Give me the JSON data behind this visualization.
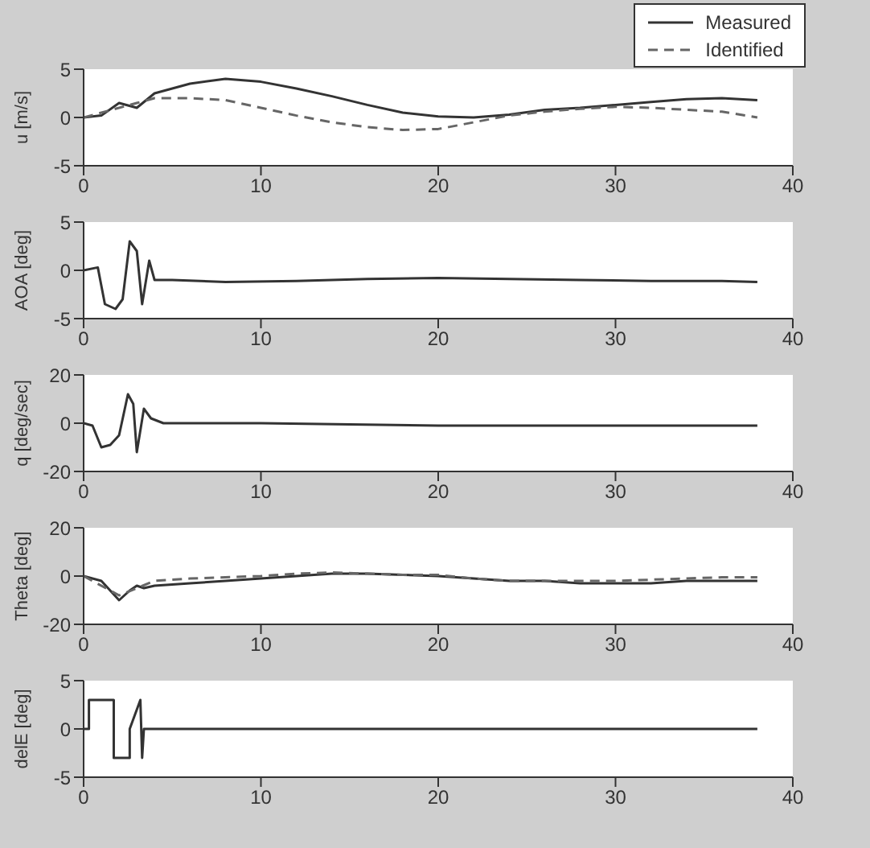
{
  "chart_data": [
    {
      "type": "line",
      "ylabel": "u [m/s]",
      "xlim": [
        0,
        40
      ],
      "xticks": [
        0,
        10,
        20,
        30,
        40
      ],
      "ylim": [
        -5,
        5
      ],
      "yticks": [
        -5,
        0,
        5
      ],
      "legend": "top right",
      "marker": "none",
      "series": [
        {
          "name": "Measured",
          "color": "#333333",
          "line_style": "solid",
          "x": [
            0,
            1,
            2,
            3,
            4,
            6,
            8,
            10,
            12,
            14,
            16,
            18,
            20,
            22,
            24,
            26,
            28,
            30,
            32,
            34,
            36,
            38
          ],
          "values": [
            0,
            0.2,
            1.5,
            1,
            2.5,
            3.5,
            4,
            3.7,
            3,
            2.2,
            1.3,
            0.5,
            0.1,
            0,
            0.3,
            0.8,
            1,
            1.3,
            1.6,
            1.9,
            2,
            1.8
          ]
        },
        {
          "name": "Identified",
          "color": "#666666",
          "line_style": "dashed",
          "x": [
            0,
            3,
            4,
            6,
            8,
            10,
            12,
            14,
            16,
            18,
            20,
            22,
            24,
            26,
            28,
            30,
            32,
            34,
            36,
            38
          ],
          "values": [
            0,
            1.5,
            2,
            2,
            1.8,
            1,
            0.2,
            -0.5,
            -1,
            -1.3,
            -1.2,
            -0.5,
            0.2,
            0.6,
            0.9,
            1.1,
            1,
            0.8,
            0.6,
            0
          ]
        }
      ]
    },
    {
      "type": "line",
      "ylabel": "AOA [deg]",
      "xlim": [
        0,
        40
      ],
      "xticks": [
        0,
        10,
        20,
        30,
        40
      ],
      "ylim": [
        -5,
        5
      ],
      "yticks": [
        -5,
        0,
        5
      ],
      "marker": "none",
      "series": [
        {
          "color": "#333333",
          "line_style": "solid",
          "x": [
            0,
            0.8,
            1.2,
            1.8,
            2.2,
            2.6,
            3,
            3.3,
            3.7,
            4,
            5,
            8,
            12,
            16,
            20,
            24,
            28,
            32,
            36,
            38
          ],
          "values": [
            0,
            0.3,
            -3.5,
            -4,
            -3,
            3,
            2,
            -3.5,
            1,
            -1,
            -1,
            -1.2,
            -1.1,
            -0.9,
            -0.8,
            -0.9,
            -1,
            -1.1,
            -1.1,
            -1.2
          ]
        }
      ]
    },
    {
      "type": "line",
      "ylabel": "q [deg/sec]",
      "xlim": [
        0,
        40
      ],
      "xticks": [
        0,
        10,
        20,
        30,
        40
      ],
      "ylim": [
        -20,
        20
      ],
      "yticks": [
        -20,
        0,
        20
      ],
      "marker": "none",
      "series": [
        {
          "color": "#333333",
          "line_style": "solid",
          "x": [
            0,
            0.5,
            1,
            1.5,
            2,
            2.5,
            2.8,
            3,
            3.4,
            3.8,
            4.5,
            10,
            20,
            30,
            38
          ],
          "values": [
            0,
            -1,
            -10,
            -9,
            -5,
            12,
            8,
            -12,
            6,
            2,
            0,
            0,
            -1,
            -1,
            -1
          ]
        }
      ]
    },
    {
      "type": "line",
      "ylabel": "Theta [deg]",
      "xlim": [
        0,
        40
      ],
      "xticks": [
        0,
        10,
        20,
        30,
        40
      ],
      "ylim": [
        -20,
        20
      ],
      "yticks": [
        -20,
        0,
        20
      ],
      "marker": "none",
      "series": [
        {
          "color": "#333333",
          "line_style": "solid",
          "x": [
            0,
            1,
            2,
            2.6,
            3,
            3.4,
            4,
            6,
            8,
            10,
            12,
            14,
            16,
            18,
            20,
            22,
            24,
            26,
            28,
            30,
            32,
            34,
            36,
            38
          ],
          "values": [
            0,
            -2,
            -10,
            -6,
            -4,
            -5,
            -4,
            -3,
            -2,
            -1,
            0,
            1,
            1,
            0.5,
            0,
            -1,
            -2,
            -2,
            -3,
            -3,
            -3,
            -2,
            -2,
            -2
          ]
        },
        {
          "color": "#666666",
          "line_style": "dashed",
          "x": [
            0,
            2,
            3,
            4,
            6,
            8,
            10,
            12,
            14,
            16,
            18,
            20,
            22,
            24,
            26,
            28,
            30,
            32,
            34,
            36,
            38
          ],
          "values": [
            0,
            -8,
            -5,
            -2,
            -1,
            -0.5,
            0,
            1,
            1.5,
            1,
            0.5,
            0.5,
            -1,
            -2,
            -2,
            -2,
            -2,
            -1.5,
            -1,
            -0.5,
            -0.5
          ]
        }
      ]
    },
    {
      "type": "line",
      "ylabel": "delE [deg]",
      "xlim": [
        0,
        40
      ],
      "xticks": [
        0,
        10,
        20,
        30,
        40
      ],
      "ylim": [
        -5,
        5
      ],
      "yticks": [
        -5,
        0,
        5
      ],
      "marker": "none",
      "series": [
        {
          "color": "#333333",
          "line_style": "solid",
          "x": [
            0,
            0.3,
            0.3,
            1.7,
            1.7,
            2.6,
            2.6,
            3.2,
            3.3,
            3.4,
            38
          ],
          "values": [
            0,
            0,
            3,
            3,
            -3,
            -3,
            0,
            3,
            -3,
            0,
            0
          ]
        }
      ]
    }
  ]
}
